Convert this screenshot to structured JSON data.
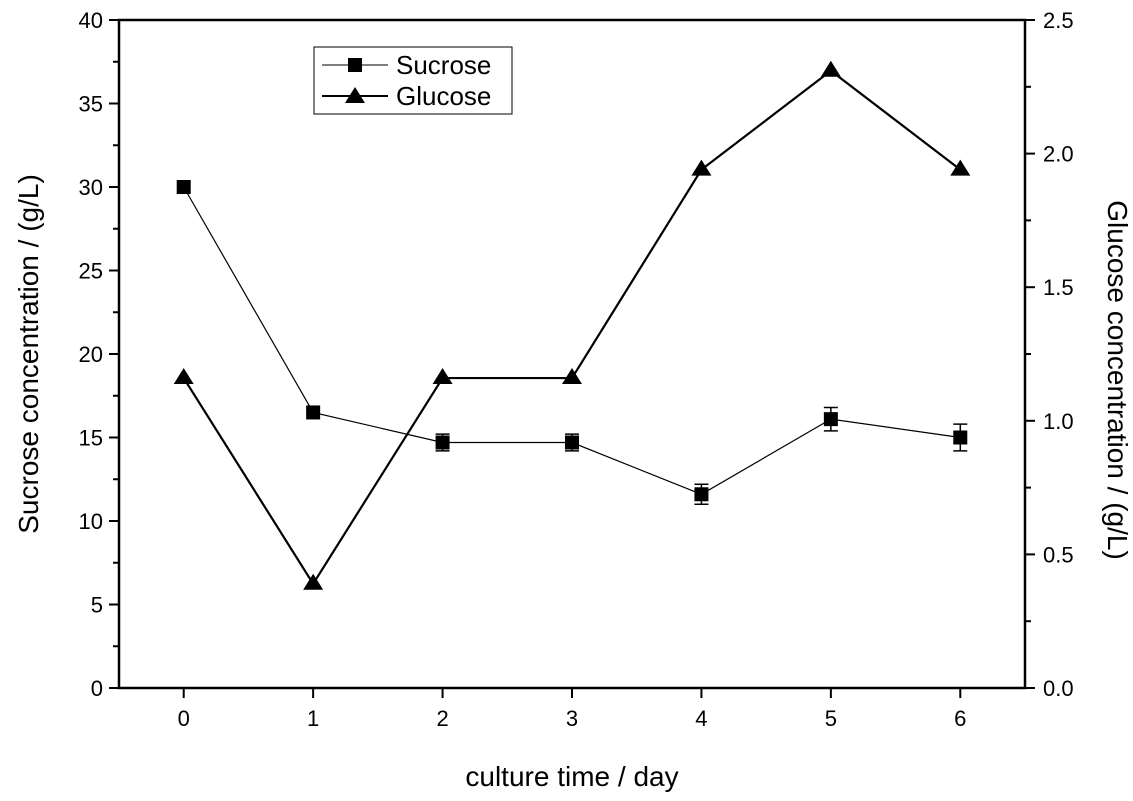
{
  "chart_data": {
    "type": "line",
    "xlabel": "culture time / day",
    "ylabel_left": "Sucrose concentration / (g/L)",
    "ylabel_right": "Glucose concentration / (g/L)",
    "x": [
      0,
      1,
      2,
      3,
      4,
      5,
      6
    ],
    "xlim": [
      -0.5,
      6.5
    ],
    "ylim_left": [
      0,
      40
    ],
    "ylim_right": [
      0,
      2.5
    ],
    "x_ticks": [
      "0",
      "1",
      "2",
      "3",
      "4",
      "5",
      "6"
    ],
    "y_left_ticks": [
      "0",
      "5",
      "10",
      "15",
      "20",
      "25",
      "30",
      "35",
      "40"
    ],
    "y_right_ticks": [
      "0.0",
      "0.5",
      "1.0",
      "1.5",
      "2.0",
      "2.5"
    ],
    "grid": false,
    "legend_position": "top-left",
    "series": [
      {
        "name": "Sucrose",
        "axis": "left",
        "marker": "square",
        "values": [
          30.0,
          16.5,
          14.7,
          14.7,
          11.6,
          16.1,
          15.0
        ],
        "errors": [
          0,
          0,
          0.5,
          0.5,
          0.6,
          0.7,
          0.8
        ]
      },
      {
        "name": "Glucose",
        "axis": "right",
        "marker": "triangle",
        "values": [
          1.16,
          0.39,
          1.16,
          1.16,
          1.94,
          2.31,
          1.94
        ]
      }
    ],
    "colors": {
      "line": "#000000",
      "background": "#ffffff"
    }
  }
}
